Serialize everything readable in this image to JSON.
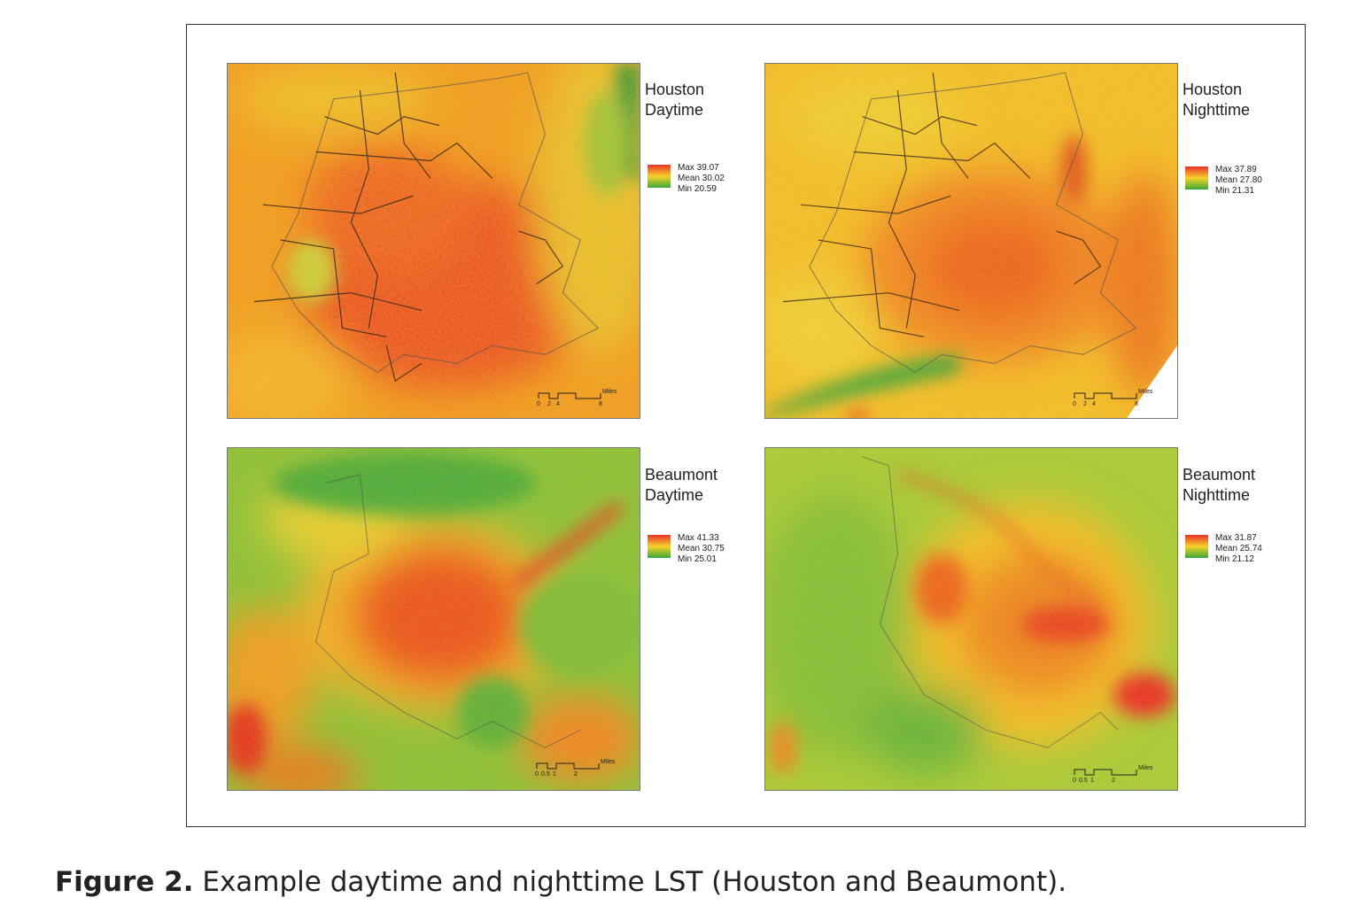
{
  "figure": {
    "label": "Figure 2.",
    "caption": "Example daytime and nighttime LST (Houston and Beaumont)."
  },
  "colors": {
    "high": "#e8312a",
    "mid": "#f7d22a",
    "low": "#3aa83c",
    "frame": "#333333"
  },
  "panels": [
    {
      "id": "houston-day",
      "title_line1": "Houston",
      "title_line2": "Daytime",
      "legend": {
        "max": "Max 39.07",
        "mean": "Mean 30.02",
        "min": "Min 20.59"
      },
      "scale": {
        "labels": [
          "0",
          "2",
          "4",
          "8"
        ],
        "unit": "Miles"
      }
    },
    {
      "id": "houston-night",
      "title_line1": "Houston",
      "title_line2": "Nighttime",
      "legend": {
        "max": "Max 37.89",
        "mean": "Mean 27.80",
        "min": "Min 21.31"
      },
      "scale": {
        "labels": [
          "0",
          "2",
          "4",
          "8"
        ],
        "unit": "Miles"
      }
    },
    {
      "id": "beaumont-day",
      "title_line1": "Beaumont",
      "title_line2": "Daytime",
      "legend": {
        "max": "Max 41.33",
        "mean": "Mean 30.75",
        "min": "Min 25.01"
      },
      "scale": {
        "labels": [
          "0",
          "0.5",
          "1",
          "2"
        ],
        "unit": "Miles"
      }
    },
    {
      "id": "beaumont-night",
      "title_line1": "Beaumont",
      "title_line2": "Nighttime",
      "legend": {
        "max": "Max 31.87",
        "mean": "Mean 25.74",
        "min": "Min 21.12"
      },
      "scale": {
        "labels": [
          "0",
          "0.5",
          "1",
          "2"
        ],
        "unit": "Miles"
      }
    }
  ]
}
